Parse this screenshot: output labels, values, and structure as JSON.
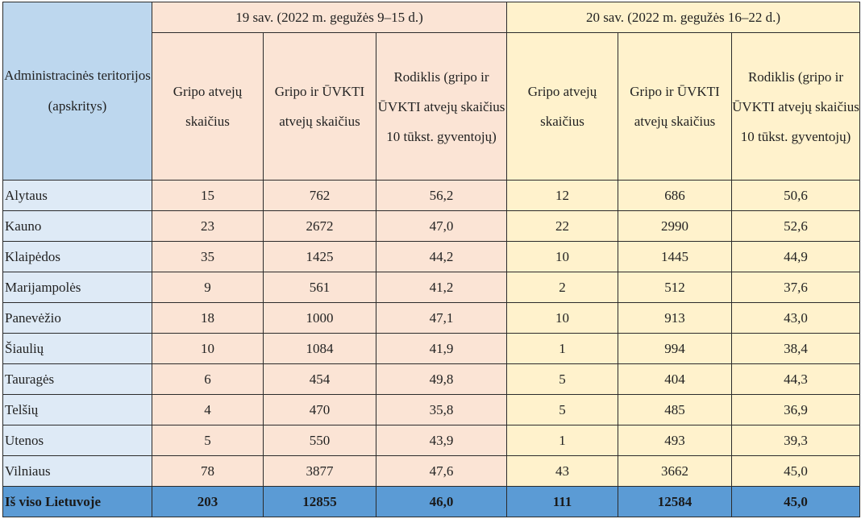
{
  "header": {
    "region_label": "Administracinės teritorijos (apskritys)",
    "week19": "19 sav. (2022 m. gegužės  9–15 d.)",
    "week20": "20 sav. (2022 m. gegužės  16–22 d.)",
    "col_flu": "Gripo atvejų skaičius",
    "col_flu_ari": "Gripo ir ŪVKTI atvejų skaičius",
    "col_rate": "Rodiklis (gripo ir ŪVKTI atvejų skaičius 10 tūkst. gyventojų)"
  },
  "rows": [
    {
      "region": "Alytaus",
      "w19_flu": "15",
      "w19_total": "762",
      "w19_rate": "56,2",
      "w20_flu": "12",
      "w20_total": "686",
      "w20_rate": "50,6"
    },
    {
      "region": "Kauno",
      "w19_flu": "23",
      "w19_total": "2672",
      "w19_rate": "47,0",
      "w20_flu": "22",
      "w20_total": "2990",
      "w20_rate": "52,6"
    },
    {
      "region": "Klaipėdos",
      "w19_flu": "35",
      "w19_total": "1425",
      "w19_rate": "44,2",
      "w20_flu": "10",
      "w20_total": "1445",
      "w20_rate": "44,9"
    },
    {
      "region": "Marijampolės",
      "w19_flu": "9",
      "w19_total": "561",
      "w19_rate": "41,2",
      "w20_flu": "2",
      "w20_total": "512",
      "w20_rate": "37,6"
    },
    {
      "region": "Panevėžio",
      "w19_flu": "18",
      "w19_total": "1000",
      "w19_rate": "47,1",
      "w20_flu": "10",
      "w20_total": "913",
      "w20_rate": "43,0"
    },
    {
      "region": "Šiaulių",
      "w19_flu": "10",
      "w19_total": "1084",
      "w19_rate": "41,9",
      "w20_flu": "1",
      "w20_total": "994",
      "w20_rate": "38,4"
    },
    {
      "region": "Tauragės",
      "w19_flu": "6",
      "w19_total": "454",
      "w19_rate": "49,8",
      "w20_flu": "5",
      "w20_total": "404",
      "w20_rate": "44,3"
    },
    {
      "region": "Telšių",
      "w19_flu": "4",
      "w19_total": "470",
      "w19_rate": "35,8",
      "w20_flu": "5",
      "w20_total": "485",
      "w20_rate": "36,9"
    },
    {
      "region": "Utenos",
      "w19_flu": "5",
      "w19_total": "550",
      "w19_rate": "43,9",
      "w20_flu": "1",
      "w20_total": "493",
      "w20_rate": "39,3"
    },
    {
      "region": "Vilniaus",
      "w19_flu": "78",
      "w19_total": "3877",
      "w19_rate": "47,6",
      "w20_flu": "43",
      "w20_total": "3662",
      "w20_rate": "45,0"
    }
  ],
  "total": {
    "region": "Iš viso Lietuvoje",
    "w19_flu": "203",
    "w19_total": "12855",
    "w19_rate": "46,0",
    "w20_flu": "111",
    "w20_total": "12584",
    "w20_rate": "45,0"
  },
  "colors": {
    "week19_bg": "#fbe4d5",
    "week20_bg": "#fff2cc",
    "region_bg": "#deeaf6",
    "header_region_bg": "#bdd7ee",
    "total_bg": "#5b9bd5"
  }
}
